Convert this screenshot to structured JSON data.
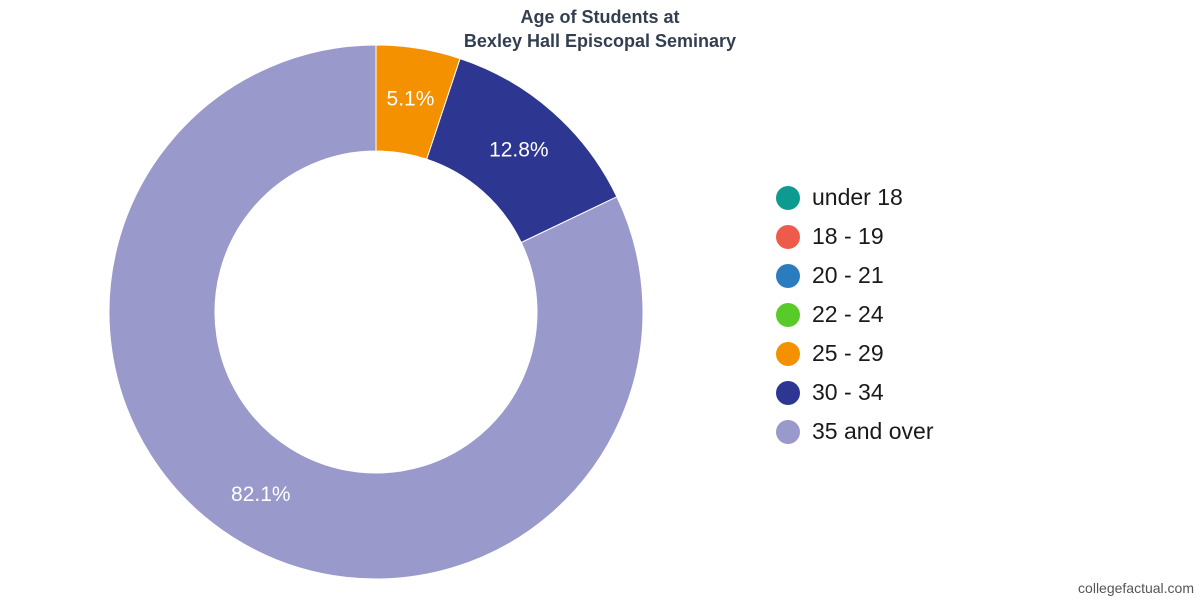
{
  "chart_data": {
    "type": "pie",
    "title_lines": [
      "Age of Students at",
      "Bexley Hall Episcopal Seminary"
    ],
    "categories": [
      "under 18",
      "18 - 19",
      "20 - 21",
      "22 - 24",
      "25 - 29",
      "30 - 34",
      "35 and over"
    ],
    "values": [
      0,
      0,
      0,
      0,
      5.1,
      12.8,
      82.1
    ],
    "value_labels": [
      "",
      "",
      "",
      "",
      "5.1%",
      "12.8%",
      "82.1%"
    ],
    "colors": [
      "#0e9b8f",
      "#ef5b4b",
      "#2b7bbf",
      "#58cb2a",
      "#f49100",
      "#2d3690",
      "#9a99cb"
    ],
    "donut": true,
    "legend_position": "right"
  },
  "watermark": "collegefactual.com"
}
